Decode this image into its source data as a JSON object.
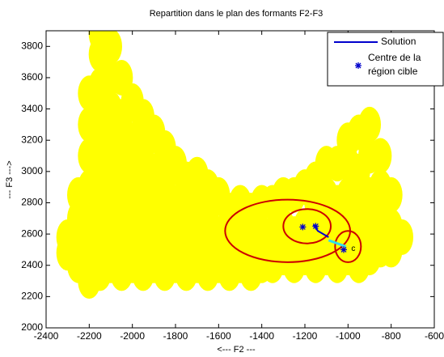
{
  "chart_data": {
    "type": "scatter",
    "title": "Repartition dans le plan des formants F2-F3",
    "xlabel": "<--- F2 ---",
    "ylabel": "--- F3 --->",
    "xlim": [
      -2400,
      -600
    ],
    "ylim": [
      2000,
      3900
    ],
    "xticks": [
      -2400,
      -2200,
      -2000,
      -1800,
      -1600,
      -1400,
      -1200,
      -1000,
      -800,
      -600
    ],
    "yticks": [
      2000,
      2200,
      2400,
      2600,
      2800,
      3000,
      3200,
      3400,
      3600,
      3800
    ],
    "legend": "northeast",
    "points": {
      "color": "#ffff00",
      "x": [
        -2300,
        -2300,
        -2250,
        -2250,
        -2250,
        -2250,
        -2200,
        -2200,
        -2200,
        -2200,
        -2200,
        -2200,
        -2200,
        -2150,
        -2150,
        -2150,
        -2150,
        -2150,
        -2150,
        -2150,
        -2150,
        -2150,
        -2100,
        -2100,
        -2100,
        -2100,
        -2100,
        -2100,
        -2100,
        -2100,
        -2050,
        -2050,
        -2050,
        -2050,
        -2050,
        -2050,
        -2050,
        -2000,
        -2000,
        -2000,
        -2000,
        -2000,
        -2000,
        -1950,
        -1950,
        -1950,
        -1950,
        -1950,
        -1950,
        -1900,
        -1900,
        -1900,
        -1900,
        -1900,
        -1850,
        -1850,
        -1850,
        -1850,
        -1850,
        -1800,
        -1800,
        -1800,
        -1800,
        -1750,
        -1750,
        -1750,
        -1750,
        -1700,
        -1700,
        -1700,
        -1700,
        -1650,
        -1650,
        -1650,
        -1650,
        -1600,
        -1600,
        -1600,
        -1550,
        -1550,
        -1550,
        -1500,
        -1500,
        -1500,
        -1450,
        -1450,
        -1450,
        -1400,
        -1400,
        -1400,
        -1350,
        -1350,
        -1350,
        -1300,
        -1300,
        -1300,
        -1250,
        -1250,
        -1250,
        -1200,
        -1200,
        -1200,
        -1150,
        -1150,
        -1150,
        -1150,
        -1100,
        -1100,
        -1100,
        -1100,
        -1050,
        -1050,
        -1050,
        -1050,
        -1000,
        -1000,
        -1000,
        -1000,
        -1000,
        -950,
        -950,
        -950,
        -950,
        -950,
        -900,
        -900,
        -900,
        -900,
        -900,
        -850,
        -850,
        -850,
        -850,
        -800,
        -800,
        -800,
        -750
      ],
      "y": [
        2480,
        2580,
        2400,
        2550,
        2700,
        2850,
        2300,
        2500,
        2700,
        2900,
        3100,
        3300,
        3500,
        2350,
        2550,
        2750,
        2950,
        3150,
        3350,
        3550,
        3750,
        3880,
        2400,
        2600,
        2800,
        3000,
        3200,
        3400,
        3600,
        3800,
        2350,
        2550,
        2750,
        2950,
        3150,
        3350,
        3600,
        2400,
        2600,
        2800,
        3000,
        3200,
        3450,
        2350,
        2550,
        2750,
        2950,
        3150,
        3350,
        2400,
        2600,
        2800,
        3000,
        3250,
        2350,
        2550,
        2750,
        2950,
        3150,
        2400,
        2600,
        2800,
        3050,
        2350,
        2550,
        2750,
        2950,
        2400,
        2600,
        2800,
        2980,
        2350,
        2550,
        2750,
        2900,
        2400,
        2600,
        2850,
        2350,
        2550,
        2750,
        2400,
        2600,
        2800,
        2350,
        2550,
        2750,
        2400,
        2600,
        2800,
        2400,
        2600,
        2800,
        2450,
        2650,
        2850,
        2400,
        2600,
        2850,
        2450,
        2650,
        2900,
        2400,
        2600,
        2800,
        2950,
        2450,
        2650,
        2850,
        3050,
        2400,
        2600,
        2800,
        3050,
        2450,
        2650,
        2850,
        3050,
        3200,
        2400,
        2600,
        2800,
        3000,
        3250,
        2450,
        2650,
        2850,
        3100,
        3300,
        2500,
        2700,
        2900,
        3100,
        2500,
        2650,
        2850,
        2580
      ]
    },
    "ellipses": {
      "color": "#cc0000",
      "cx": [
        -1280,
        -1190,
        -1000
      ],
      "cy": [
        2620,
        2650,
        2520
      ],
      "rx": [
        290,
        110,
        60
      ],
      "ry": [
        200,
        110,
        100
      ]
    },
    "series": [
      {
        "name": "Solution",
        "color": "#0000cc",
        "x": [
          -1160,
          -1140,
          -1090
        ],
        "y": [
          2660,
          2620,
          2580
        ]
      },
      {
        "name": "Centre de la\nrégion cible",
        "color": "#0000cc",
        "x": [
          -1210,
          -1150,
          -1020
        ],
        "y": [
          2645,
          2650,
          2500
        ]
      }
    ],
    "trajectory": {
      "color": "#33ddee",
      "x": [
        -1090,
        -1050,
        -1010
      ],
      "y": [
        2560,
        2540,
        2520
      ]
    },
    "annotation": {
      "text": "c",
      "x": -985,
      "y": 2505
    }
  }
}
